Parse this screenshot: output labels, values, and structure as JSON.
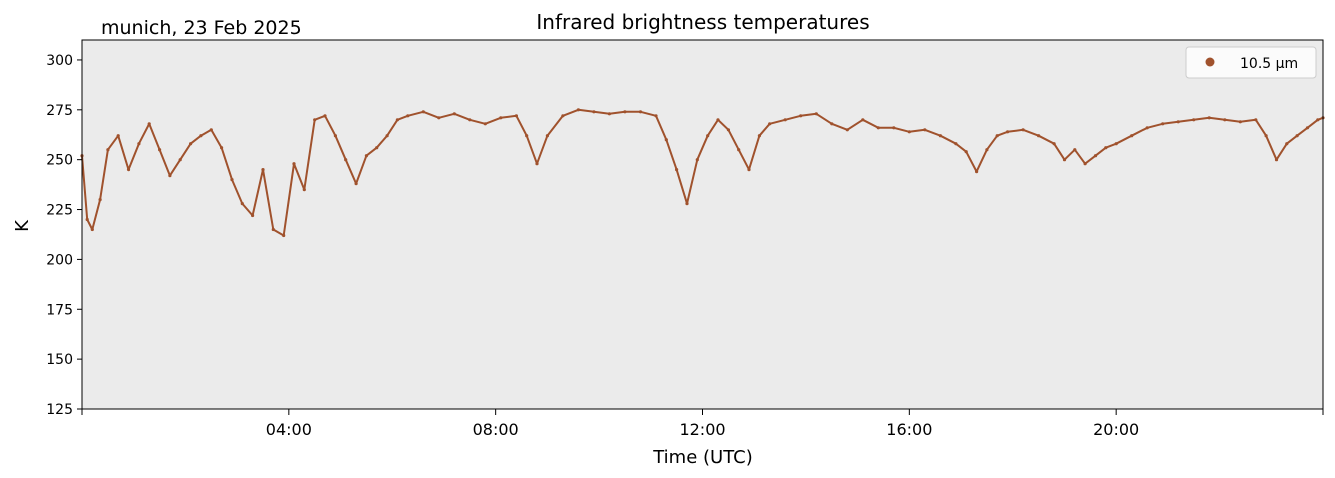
{
  "chart_data": {
    "type": "line",
    "title": "Infrared brightness temperatures",
    "corner_label": "munich, 23 Feb 2025",
    "xlabel": "Time (UTC)",
    "ylabel": "K",
    "ylim": [
      125,
      310
    ],
    "xlim_hours": [
      0,
      24
    ],
    "yticks": [
      "125",
      "150",
      "175",
      "200",
      "225",
      "250",
      "275",
      "300"
    ],
    "xticks": [
      {
        "label": "04:00",
        "hour": 4
      },
      {
        "label": "08:00",
        "hour": 8
      },
      {
        "label": "12:00",
        "hour": 12
      },
      {
        "label": "16:00",
        "hour": 16
      },
      {
        "label": "20:00",
        "hour": 20
      }
    ],
    "grid": false,
    "legend_position": "top-right",
    "colors": {
      "series": "#a0522d",
      "plot_background": "#ebebeb"
    },
    "series": [
      {
        "name": "10.5 µm",
        "hour": [
          0.0,
          0.1,
          0.2,
          0.35,
          0.5,
          0.7,
          0.9,
          1.1,
          1.3,
          1.5,
          1.7,
          1.9,
          2.1,
          2.3,
          2.5,
          2.7,
          2.9,
          3.1,
          3.3,
          3.5,
          3.7,
          3.9,
          4.1,
          4.3,
          4.5,
          4.7,
          4.9,
          5.1,
          5.3,
          5.5,
          5.7,
          5.9,
          6.1,
          6.3,
          6.6,
          6.9,
          7.2,
          7.5,
          7.8,
          8.1,
          8.4,
          8.6,
          8.8,
          9.0,
          9.3,
          9.6,
          9.9,
          10.2,
          10.5,
          10.8,
          11.1,
          11.3,
          11.5,
          11.7,
          11.9,
          12.1,
          12.3,
          12.5,
          12.7,
          12.9,
          13.1,
          13.3,
          13.6,
          13.9,
          14.2,
          14.5,
          14.8,
          15.1,
          15.4,
          15.7,
          16.0,
          16.3,
          16.6,
          16.9,
          17.1,
          17.3,
          17.5,
          17.7,
          17.9,
          18.2,
          18.5,
          18.8,
          19.0,
          19.2,
          19.4,
          19.6,
          19.8,
          20.0,
          20.3,
          20.6,
          20.9,
          21.2,
          21.5,
          21.8,
          22.1,
          22.4,
          22.7,
          22.9,
          23.1,
          23.3,
          23.5,
          23.7,
          23.9,
          24.0
        ],
        "values": [
          252,
          220,
          215,
          230,
          255,
          262,
          245,
          258,
          268,
          255,
          242,
          250,
          258,
          262,
          265,
          256,
          240,
          228,
          222,
          245,
          215,
          212,
          248,
          235,
          270,
          272,
          262,
          250,
          238,
          252,
          256,
          262,
          270,
          272,
          274,
          271,
          273,
          270,
          268,
          271,
          272,
          262,
          248,
          262,
          272,
          275,
          274,
          273,
          274,
          274,
          272,
          260,
          245,
          228,
          250,
          262,
          270,
          265,
          255,
          245,
          262,
          268,
          270,
          272,
          273,
          268,
          265,
          270,
          266,
          266,
          264,
          265,
          262,
          258,
          254,
          244,
          255,
          262,
          264,
          265,
          262,
          258,
          250,
          255,
          248,
          252,
          256,
          258,
          262,
          266,
          268,
          269,
          270,
          271,
          270,
          269,
          270,
          262,
          250,
          258,
          262,
          266,
          270,
          271
        ]
      }
    ]
  }
}
